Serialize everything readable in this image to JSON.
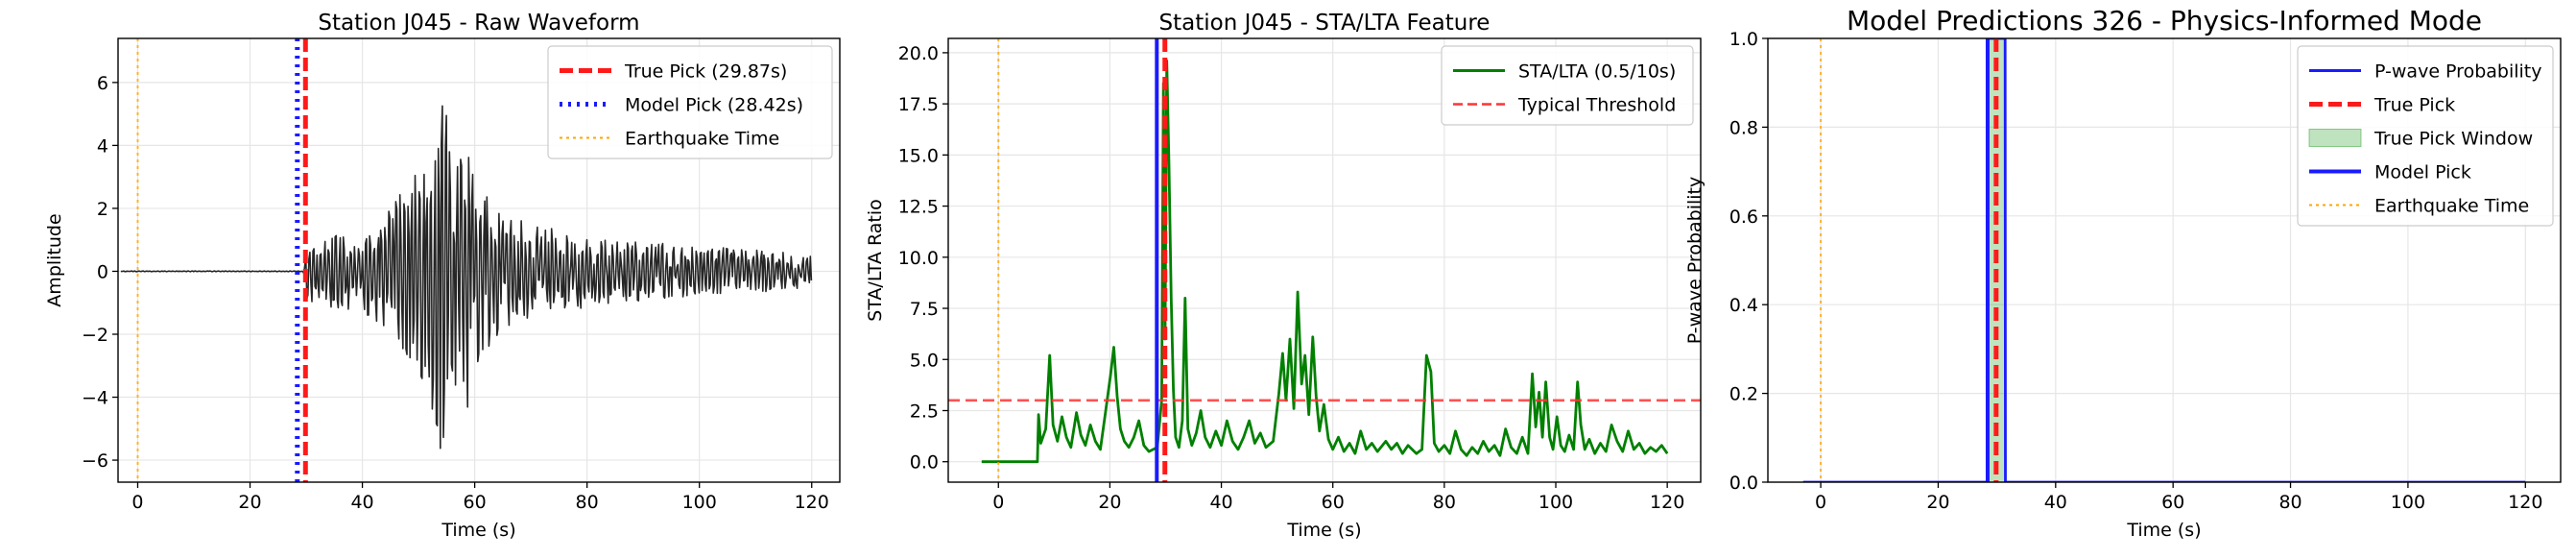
{
  "chart_data": [
    {
      "type": "line",
      "title": "Station J045 - Raw Waveform",
      "xlabel": "Time (s)",
      "ylabel": "Amplitude",
      "xlim": [
        -3.5,
        125
      ],
      "ylim": [
        -6.7,
        7.4
      ],
      "xticks": [
        0,
        20,
        40,
        60,
        80,
        100,
        120
      ],
      "xtick_labels": [
        "0",
        "20",
        "40",
        "60",
        "80",
        "100",
        "120"
      ],
      "yticks": [
        -6,
        -4,
        -2,
        0,
        2,
        4,
        6
      ],
      "ytick_labels": [
        "−6",
        "−4",
        "−2",
        "0",
        "2",
        "4",
        "6"
      ],
      "grid": true,
      "legend_position": "upper right",
      "series": [
        {
          "name": "",
          "kind": "waveform",
          "color": "#262626",
          "x_range": [
            -3,
            120
          ],
          "envelope": [
            [
              -3,
              0.01
            ],
            [
              29.5,
              0.01
            ],
            [
              30,
              0.9
            ],
            [
              33,
              1.1
            ],
            [
              40,
              1.3
            ],
            [
              44,
              1.8
            ],
            [
              47,
              2.6
            ],
            [
              50,
              3.2
            ],
            [
              53,
              4.8
            ],
            [
              55,
              6.8
            ],
            [
              57,
              5.5
            ],
            [
              60,
              3.6
            ],
            [
              63,
              2.3
            ],
            [
              67,
              1.7
            ],
            [
              75,
              1.3
            ],
            [
              85,
              1.0
            ],
            [
              100,
              0.8
            ],
            [
              110,
              0.7
            ],
            [
              120,
              0.5
            ]
          ]
        },
        {
          "name": "True Pick (29.87s)",
          "kind": "vline",
          "x": 29.87,
          "color": "#ff1a1a",
          "style": "dashed"
        },
        {
          "name": "Model Pick (28.42s)",
          "kind": "vline",
          "x": 28.42,
          "color": "#1a1aff",
          "style": "dotted"
        },
        {
          "name": "Earthquake Time",
          "kind": "vline",
          "x": 0,
          "color": "#ffa500",
          "style": "dotted-thin"
        }
      ]
    },
    {
      "type": "line",
      "title": "Station J045 - STA/LTA Feature",
      "xlabel": "Time (s)",
      "ylabel": "STA/LTA Ratio",
      "xlim": [
        -9,
        126
      ],
      "ylim": [
        -1.0,
        20.7
      ],
      "xticks": [
        0,
        20,
        40,
        60,
        80,
        100,
        120
      ],
      "xtick_labels": [
        "0",
        "20",
        "40",
        "60",
        "80",
        "100",
        "120"
      ],
      "yticks": [
        0.0,
        2.5,
        5.0,
        7.5,
        10.0,
        12.5,
        15.0,
        17.5,
        20.0
      ],
      "ytick_labels": [
        "0.0",
        "2.5",
        "5.0",
        "7.5",
        "10.0",
        "12.5",
        "15.0",
        "17.5",
        "20.0"
      ],
      "grid": true,
      "legend_position": "upper right",
      "series": [
        {
          "name": "STA/LTA (0.5/10s)",
          "kind": "line",
          "color": "#008000",
          "points": [
            [
              -3,
              0
            ],
            [
              7,
              0
            ],
            [
              7.2,
              2.3
            ],
            [
              7.6,
              0.9
            ],
            [
              8.5,
              1.6
            ],
            [
              9.2,
              5.2
            ],
            [
              9.8,
              1.8
            ],
            [
              10.6,
              1.0
            ],
            [
              11.4,
              2.2
            ],
            [
              12.2,
              1.2
            ],
            [
              13,
              0.7
            ],
            [
              14,
              2.4
            ],
            [
              14.8,
              1.3
            ],
            [
              15.6,
              0.8
            ],
            [
              16.5,
              1.8
            ],
            [
              17.4,
              1.0
            ],
            [
              18.3,
              0.6
            ],
            [
              19.2,
              2.4
            ],
            [
              20.1,
              4.2
            ],
            [
              20.7,
              5.6
            ],
            [
              21.3,
              3.2
            ],
            [
              21.9,
              1.6
            ],
            [
              22.6,
              1.0
            ],
            [
              23.4,
              0.7
            ],
            [
              24.3,
              1.2
            ],
            [
              25.2,
              2.0
            ],
            [
              26.1,
              0.8
            ],
            [
              27,
              0.5
            ],
            [
              28.5,
              0.7
            ],
            [
              29.3,
              3.0
            ],
            [
              29.6,
              18.5
            ],
            [
              29.9,
              6.0
            ],
            [
              30.2,
              19.6
            ],
            [
              30.6,
              14.5
            ],
            [
              31,
              8.0
            ],
            [
              31.4,
              3.5
            ],
            [
              31.8,
              1.2
            ],
            [
              32.4,
              0.7
            ],
            [
              33,
              2.0
            ],
            [
              33.5,
              8.0
            ],
            [
              34,
              1.6
            ],
            [
              34.7,
              0.8
            ],
            [
              35.5,
              1.4
            ],
            [
              36.3,
              2.5
            ],
            [
              37.1,
              1.2
            ],
            [
              38,
              0.7
            ],
            [
              39,
              1.5
            ],
            [
              40,
              0.8
            ],
            [
              41,
              2.0
            ],
            [
              42,
              1.0
            ],
            [
              43,
              0.6
            ],
            [
              44,
              1.2
            ],
            [
              45,
              2.0
            ],
            [
              46,
              0.9
            ],
            [
              47,
              1.4
            ],
            [
              48,
              0.7
            ],
            [
              49.3,
              1.0
            ],
            [
              50.3,
              3.3
            ],
            [
              51,
              5.3
            ],
            [
              51.6,
              3.0
            ],
            [
              52.3,
              6.0
            ],
            [
              53,
              2.6
            ],
            [
              53.7,
              8.3
            ],
            [
              54.4,
              3.8
            ],
            [
              55,
              5.2
            ],
            [
              55.7,
              2.3
            ],
            [
              56.4,
              6.1
            ],
            [
              57,
              3.2
            ],
            [
              57.6,
              1.5
            ],
            [
              58.4,
              2.8
            ],
            [
              59.2,
              1.1
            ],
            [
              60,
              0.6
            ],
            [
              61,
              1.2
            ],
            [
              62,
              0.5
            ],
            [
              63,
              0.9
            ],
            [
              64,
              0.4
            ],
            [
              65,
              1.5
            ],
            [
              66,
              0.6
            ],
            [
              67,
              0.9
            ],
            [
              68,
              0.5
            ],
            [
              69.5,
              1.0
            ],
            [
              70.5,
              0.6
            ],
            [
              71.5,
              0.9
            ],
            [
              72.5,
              0.4
            ],
            [
              73.5,
              0.8
            ],
            [
              75,
              0.4
            ],
            [
              76,
              0.6
            ],
            [
              76.8,
              5.2
            ],
            [
              77.6,
              4.4
            ],
            [
              78.2,
              0.9
            ],
            [
              79,
              0.5
            ],
            [
              80,
              0.8
            ],
            [
              81,
              0.4
            ],
            [
              82,
              1.5
            ],
            [
              83,
              0.6
            ],
            [
              84,
              0.3
            ],
            [
              85,
              0.7
            ],
            [
              86,
              0.4
            ],
            [
              87,
              1.0
            ],
            [
              88,
              0.5
            ],
            [
              89,
              0.8
            ],
            [
              90,
              0.3
            ],
            [
              91,
              1.6
            ],
            [
              92,
              0.7
            ],
            [
              93,
              0.4
            ],
            [
              94,
              1.2
            ],
            [
              95,
              0.4
            ],
            [
              95.8,
              4.3
            ],
            [
              96.4,
              1.7
            ],
            [
              97,
              3.4
            ],
            [
              97.6,
              1.2
            ],
            [
              98.2,
              3.9
            ],
            [
              98.9,
              1.2
            ],
            [
              99.5,
              0.6
            ],
            [
              100.2,
              2.2
            ],
            [
              100.9,
              0.8
            ],
            [
              101.6,
              0.5
            ],
            [
              102.4,
              1.3
            ],
            [
              103.2,
              0.6
            ],
            [
              103.9,
              3.9
            ],
            [
              104.5,
              1.8
            ],
            [
              105.2,
              0.6
            ],
            [
              106,
              1.1
            ],
            [
              107,
              0.4
            ],
            [
              108,
              0.9
            ],
            [
              109,
              0.5
            ],
            [
              110,
              1.8
            ],
            [
              111,
              1.0
            ],
            [
              112,
              0.5
            ],
            [
              113,
              1.5
            ],
            [
              114,
              0.6
            ],
            [
              115,
              0.9
            ],
            [
              116,
              0.4
            ],
            [
              117,
              0.7
            ],
            [
              118,
              0.5
            ],
            [
              119,
              0.8
            ],
            [
              120,
              0.4
            ]
          ]
        },
        {
          "name": "Typical Threshold",
          "kind": "hline",
          "y": 3.0,
          "color": "#ff3333",
          "style": "dashed"
        },
        {
          "name": "",
          "kind": "vline",
          "x": 28.42,
          "color": "#1a1aff",
          "style": "solid"
        },
        {
          "name": "",
          "kind": "vline",
          "x": 29.87,
          "color": "#ff1a1a",
          "style": "dashed"
        },
        {
          "name": "",
          "kind": "vline",
          "x": 0,
          "color": "#ffa500",
          "style": "dotted-thin"
        }
      ]
    },
    {
      "type": "line",
      "title": "Model Predictions 326 - Physics-Informed Mode",
      "xlabel": "Time (s)",
      "ylabel": "P-wave Probability",
      "xlim": [
        -9,
        126
      ],
      "ylim": [
        0.0,
        1.0
      ],
      "xticks": [
        0,
        20,
        40,
        60,
        80,
        100,
        120
      ],
      "xtick_labels": [
        "0",
        "20",
        "40",
        "60",
        "80",
        "100",
        "120"
      ],
      "yticks": [
        0.0,
        0.2,
        0.4,
        0.6,
        0.8,
        1.0
      ],
      "ytick_labels": [
        "0.0",
        "0.2",
        "0.4",
        "0.6",
        "0.8",
        "1.0"
      ],
      "grid": true,
      "legend_position": "upper right",
      "series": [
        {
          "name": "P-wave Probability",
          "kind": "line",
          "color": "#1a1aff",
          "points": [
            [
              -3,
              0
            ],
            [
              28.37,
              0
            ],
            [
              28.42,
              1.0
            ],
            [
              31.4,
              1.0
            ],
            [
              31.45,
              0
            ],
            [
              120,
              0
            ]
          ]
        },
        {
          "name": "True Pick",
          "kind": "vline",
          "x": 29.87,
          "color": "#ff1a1a",
          "style": "dashed"
        },
        {
          "name": "True Pick Window",
          "kind": "span",
          "x0": 28.37,
          "x1": 31.37,
          "color": "#2ca02c"
        },
        {
          "name": "Model Pick",
          "kind": "vline",
          "x": 28.42,
          "color": "#1a1aff",
          "style": "solid"
        },
        {
          "name": "Earthquake Time",
          "kind": "vline",
          "x": 0,
          "color": "#ffa500",
          "style": "dotted-thin"
        }
      ]
    }
  ]
}
